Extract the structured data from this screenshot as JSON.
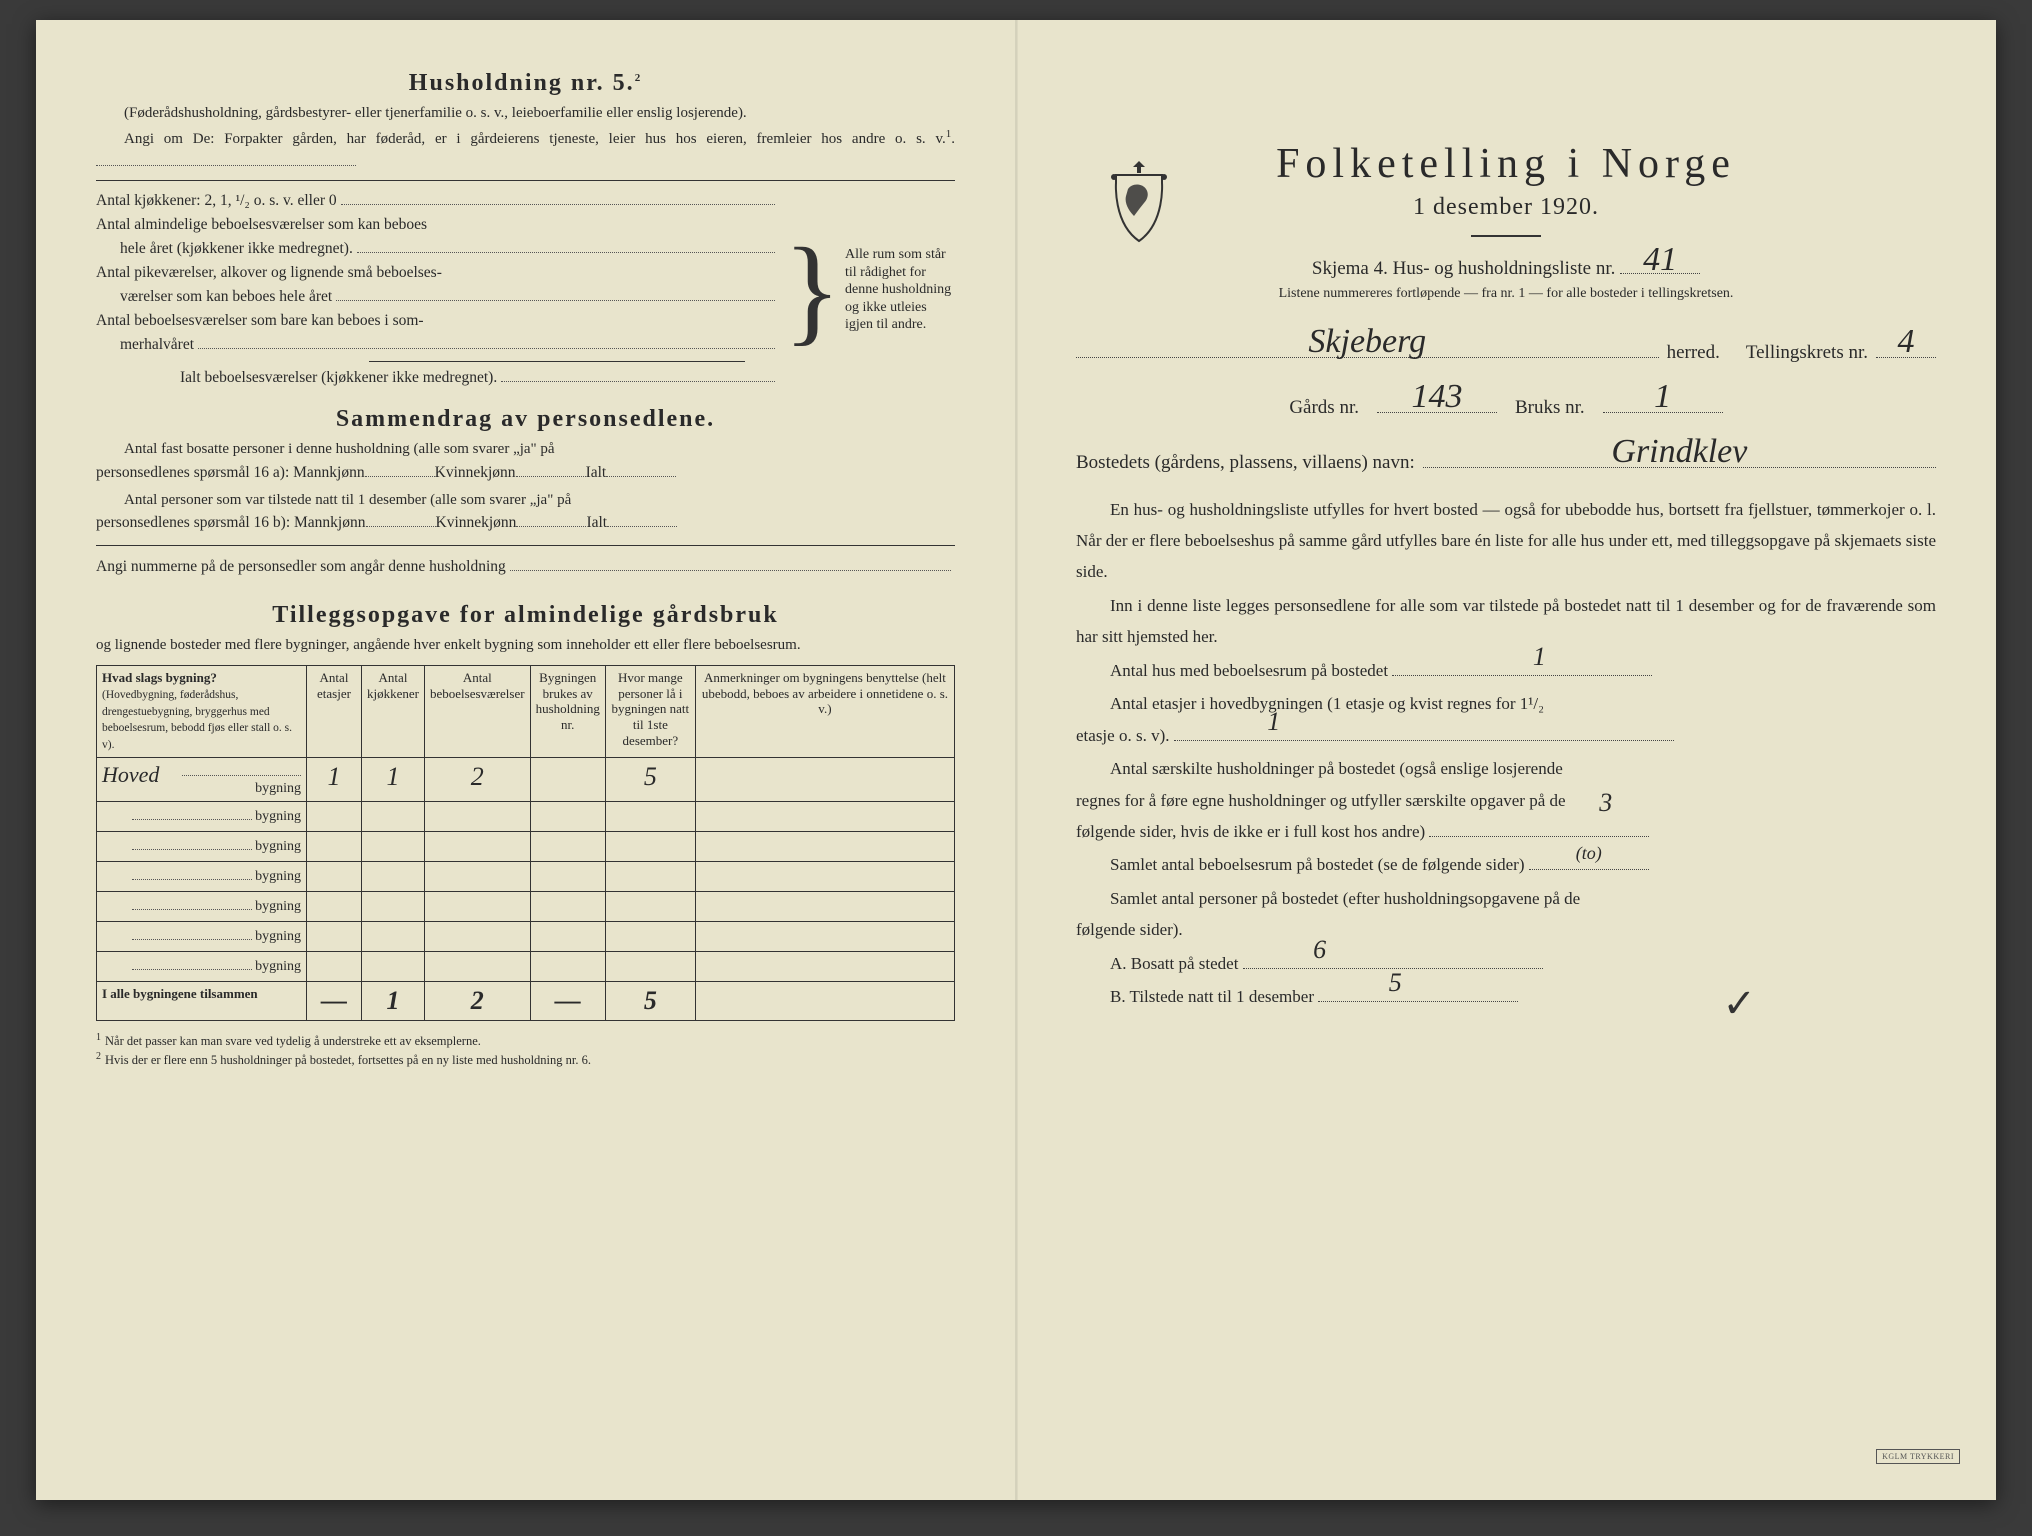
{
  "colors": {
    "paper": "#e8e4cc",
    "ink": "#2a2a2a",
    "handwriting": "#2a2a2a",
    "border": "#333333"
  },
  "left": {
    "household_title": "Husholdning nr. 5.",
    "household_sup": "2",
    "household_paren": "(Føderådshusholdning, gårdsbestyrer- eller tjenerfamilie o. s. v., leieboerfamilie eller enslig losjerende).",
    "household_instr": "Angi om De: Forpakter gården, har føderåd, er i gårdeierens tjeneste, leier hus hos eieren, fremleier hos andre o. s. v.",
    "household_instr_sup": "1",
    "rooms": {
      "r1": "Antal kjøkkener: 2, 1, ¹/₂ o. s. v. eller 0",
      "r2a": "Antal almindelige beboelsesværelser som kan beboes",
      "r2b": "hele året (kjøkkener ikke medregnet).",
      "r3a": "Antal pikeværelser, alkover og lignende små beboelses-",
      "r3b": "værelser som kan beboes hele året",
      "r4a": "Antal beboelsesværelser som bare kan beboes i som-",
      "r4b": "merhalvåret",
      "r5": "Ialt beboelsesværelser  (kjøkkener ikke medregnet).",
      "brace_note": "Alle rum som står til rådighet for denne husholdning og ikke utleies igjen til andre."
    },
    "summary_title": "Sammendrag av personsedlene.",
    "summary_l1": "Antal fast bosatte personer i denne husholdning (alle som svarer „ja\" på",
    "summary_l1b_a": "personsedlenes spørsmål 16 a): Mannkjønn",
    "summary_l1b_b": "Kvinnekjønn",
    "summary_l1b_c": "Ialt",
    "summary_l2": "Antal personer som var tilstede natt til 1 desember (alle som svarer „ja\" på",
    "summary_l2b_a": "personsedlenes spørsmål 16 b): Mannkjønn",
    "summary_l2b_b": "Kvinnekjønn",
    "summary_l2b_c": "Ialt",
    "summary_l3": "Angi nummerne på de personsedler som angår denne husholdning",
    "tillegg_title": "Tilleggsopgave for almindelige gårdsbruk",
    "tillegg_sub": "og lignende bosteder med flere bygninger, angående hver enkelt bygning som inneholder ett eller flere beboelsesrum.",
    "table": {
      "h1": "Hvad slags bygning?",
      "h1_sub": "(Hovedbygning, føderådshus, drengestuebygning, bryggerhus med beboelsesrum, bebodd fjøs eller stall o. s. v).",
      "h2": "Antal etasjer",
      "h3": "Antal kjøkkener",
      "h4": "Antal beboelsesværelser",
      "h5": "Bygningen brukes av husholdning nr.",
      "h6": "Hvor mange personer lå i bygningen natt til 1ste desember?",
      "h7": "Anmerkninger om bygningens benyttelse (helt ubebodd, beboes av arbeidere i onnetidene o. s. v.)",
      "row_suffix": "bygning",
      "rows": [
        {
          "prefix": "Hoved",
          "etasjer": "1",
          "kjokken": "1",
          "vaerelser": "2",
          "hushold": "",
          "personer": "5",
          "anm": ""
        },
        {
          "prefix": "",
          "etasjer": "",
          "kjokken": "",
          "vaerelser": "",
          "hushold": "",
          "personer": "",
          "anm": ""
        },
        {
          "prefix": "",
          "etasjer": "",
          "kjokken": "",
          "vaerelser": "",
          "hushold": "",
          "personer": "",
          "anm": ""
        },
        {
          "prefix": "",
          "etasjer": "",
          "kjokken": "",
          "vaerelser": "",
          "hushold": "",
          "personer": "",
          "anm": ""
        },
        {
          "prefix": "",
          "etasjer": "",
          "kjokken": "",
          "vaerelser": "",
          "hushold": "",
          "personer": "",
          "anm": ""
        },
        {
          "prefix": "",
          "etasjer": "",
          "kjokken": "",
          "vaerelser": "",
          "hushold": "",
          "personer": "",
          "anm": ""
        },
        {
          "prefix": "",
          "etasjer": "",
          "kjokken": "",
          "vaerelser": "",
          "hushold": "",
          "personer": "",
          "anm": ""
        }
      ],
      "total_label": "I alle bygningene tilsammen",
      "total": {
        "etasjer": "—",
        "kjokken": "1",
        "vaerelser": "2",
        "hushold": "—",
        "personer": "5",
        "anm": ""
      }
    },
    "fn1": "Når det passer kan man svare ved tydelig å understreke ett av eksemplerne.",
    "fn2": "Hvis der er flere enn 5 husholdninger på bostedet, fortsettes på en ny liste med husholdning nr. 6."
  },
  "right": {
    "title": "Folketelling  i  Norge",
    "date": "1 desember 1920.",
    "form_label": "Skjema 4.  Hus- og husholdningsliste nr.",
    "list_nr": "41",
    "numbering_note": "Listene nummereres fortløpende — fra nr. 1 — for alle bosteder i tellingskretsen.",
    "herred_value": "Skjeberg",
    "herred_label": "herred.",
    "krets_label": "Tellingskrets nr.",
    "krets_value": "4",
    "gard_label": "Gårds nr.",
    "gard_value": "143",
    "bruks_label": "Bruks nr.",
    "bruks_value": "1",
    "bosted_label": "Bostedets (gårdens, plassens, villaens) navn:",
    "bosted_value": "Grindklev",
    "para1": "En hus- og husholdningsliste utfylles for hvert bosted — også for ubebodde hus, bortsett fra fjellstuer, tømmerkojer o. l.  Når der er flere beboelseshus på samme gård utfylles bare én liste for alle hus under ett, med tilleggsopgave på skjemaets siste side.",
    "para2": "Inn i denne liste legges personsedlene for alle som var tilstede på bostedet natt til 1 desember og for de fraværende som har sitt hjemsted her.",
    "q1": "Antal hus med beboelsesrum på bostedet",
    "q1_val": "1",
    "q2a": "Antal etasjer i hovedbygningen (1 etasje og kvist regnes for 1¹/₂",
    "q2b": "etasje o. s. v).",
    "q2_val": "1",
    "q3a": "Antal særskilte husholdninger på bostedet (også enslige losjerende",
    "q3b": "regnes for å føre egne husholdninger og utfyller særskilte opgaver på de",
    "q3c": "følgende sider, hvis de ikke er i full kost hos andre)",
    "q3_val": "",
    "q4": "Samlet antal beboelsesrum på bostedet (se de følgende sider)",
    "q4_val": "3",
    "q4_val_note": "(to)",
    "q5a": "Samlet antal personer på bostedet (efter husholdningsopgavene på de",
    "q5b": "følgende sider).",
    "qA": "A.  Bosatt på stedet",
    "qA_val": "6",
    "qB": "B.  Tilstede natt til 1 desember",
    "qB_val": "5",
    "stamp": "KGLM TRYKKERI"
  }
}
